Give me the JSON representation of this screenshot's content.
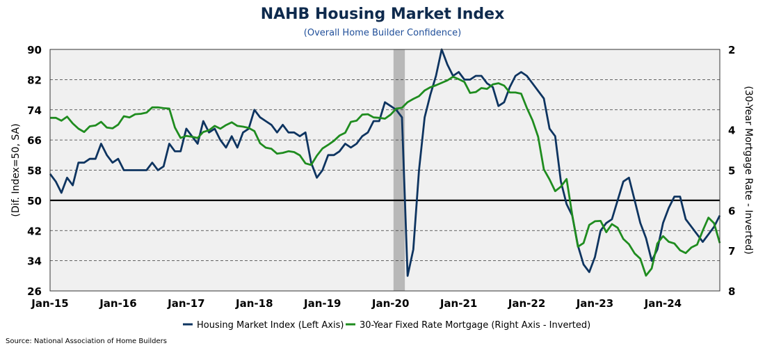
{
  "chart_data": {
    "type": "line",
    "title": "NAHB Housing Market Index",
    "subtitle": "(Overall Home Builder Confidence)",
    "ylabel_left": "(Dif. Index=50, SA)",
    "ylabel_right": "(30-Year Mortgage Rate - Inverted)",
    "ylim_left": [
      26,
      90
    ],
    "yticks_left": [
      26,
      34,
      42,
      50,
      58,
      66,
      74,
      82,
      90
    ],
    "ylim_right_inverted": [
      8,
      2
    ],
    "yticks_right": [
      2,
      4,
      5,
      6,
      7,
      8
    ],
    "xlim": [
      "2015-01",
      "2024-11"
    ],
    "xticks": [
      "Jan-15",
      "Jan-16",
      "Jan-17",
      "Jan-18",
      "Jan-19",
      "Jan-20",
      "Jan-21",
      "Jan-22",
      "Jan-23",
      "Jan-24"
    ],
    "reference_line": 50,
    "recession_shading": [
      "2020-02",
      "2020-04"
    ],
    "grid": "horizontal dashed",
    "legend_position": "bottom",
    "series": [
      {
        "name": "Housing Market Index (Left Axis)",
        "axis": "left",
        "color": "#0e3460",
        "x": [
          "2015-01",
          "2015-02",
          "2015-03",
          "2015-04",
          "2015-05",
          "2015-06",
          "2015-07",
          "2015-08",
          "2015-09",
          "2015-10",
          "2015-11",
          "2015-12",
          "2016-01",
          "2016-02",
          "2016-03",
          "2016-04",
          "2016-05",
          "2016-06",
          "2016-07",
          "2016-08",
          "2016-09",
          "2016-10",
          "2016-11",
          "2016-12",
          "2017-01",
          "2017-02",
          "2017-03",
          "2017-04",
          "2017-05",
          "2017-06",
          "2017-07",
          "2017-08",
          "2017-09",
          "2017-10",
          "2017-11",
          "2017-12",
          "2018-01",
          "2018-02",
          "2018-03",
          "2018-04",
          "2018-05",
          "2018-06",
          "2018-07",
          "2018-08",
          "2018-09",
          "2018-10",
          "2018-11",
          "2018-12",
          "2019-01",
          "2019-02",
          "2019-03",
          "2019-04",
          "2019-05",
          "2019-06",
          "2019-07",
          "2019-08",
          "2019-09",
          "2019-10",
          "2019-11",
          "2019-12",
          "2020-01",
          "2020-02",
          "2020-03",
          "2020-04",
          "2020-05",
          "2020-06",
          "2020-07",
          "2020-08",
          "2020-09",
          "2020-10",
          "2020-11",
          "2020-12",
          "2021-01",
          "2021-02",
          "2021-03",
          "2021-04",
          "2021-05",
          "2021-06",
          "2021-07",
          "2021-08",
          "2021-09",
          "2021-10",
          "2021-11",
          "2021-12",
          "2022-01",
          "2022-02",
          "2022-03",
          "2022-04",
          "2022-05",
          "2022-06",
          "2022-07",
          "2022-08",
          "2022-09",
          "2022-10",
          "2022-11",
          "2022-12",
          "2023-01",
          "2023-02",
          "2023-03",
          "2023-04",
          "2023-05",
          "2023-06",
          "2023-07",
          "2023-08",
          "2023-09",
          "2023-10",
          "2023-11",
          "2023-12",
          "2024-01",
          "2024-02",
          "2024-03",
          "2024-04",
          "2024-05",
          "2024-06",
          "2024-07",
          "2024-08",
          "2024-09",
          "2024-10",
          "2024-11"
        ],
        "values": [
          57,
          55,
          52,
          56,
          54,
          60,
          60,
          61,
          61,
          65,
          62,
          60,
          61,
          58,
          58,
          58,
          58,
          58,
          60,
          58,
          59,
          65,
          63,
          63,
          69,
          67,
          65,
          71,
          68,
          69,
          66,
          64,
          67,
          64,
          68,
          69,
          74,
          72,
          71,
          70,
          68,
          70,
          68,
          68,
          67,
          68,
          60,
          56,
          58,
          62,
          62,
          63,
          65,
          64,
          65,
          67,
          68,
          71,
          71,
          76,
          75,
          74,
          72,
          30,
          37,
          58,
          72,
          78,
          83,
          90,
          86,
          83,
          84,
          82,
          82,
          83,
          83,
          81,
          80,
          75,
          76,
          80,
          83,
          84,
          83,
          81,
          79,
          77,
          69,
          67,
          55,
          49,
          46,
          38,
          33,
          31,
          35,
          42,
          44,
          45,
          50,
          55,
          56,
          50,
          44,
          40,
          34,
          37,
          44,
          48,
          51,
          51,
          45,
          43,
          41,
          39,
          41,
          43,
          46
        ]
      },
      {
        "name": "30-Year Fixed Rate Mortgage (Right Axis - Inverted)",
        "axis": "right",
        "color": "#1f8c1f",
        "x": [
          "2015-01",
          "2015-02",
          "2015-03",
          "2015-04",
          "2015-05",
          "2015-06",
          "2015-07",
          "2015-08",
          "2015-09",
          "2015-10",
          "2015-11",
          "2015-12",
          "2016-01",
          "2016-02",
          "2016-03",
          "2016-04",
          "2016-05",
          "2016-06",
          "2016-07",
          "2016-08",
          "2016-09",
          "2016-10",
          "2016-11",
          "2016-12",
          "2017-01",
          "2017-02",
          "2017-03",
          "2017-04",
          "2017-05",
          "2017-06",
          "2017-07",
          "2017-08",
          "2017-09",
          "2017-10",
          "2017-11",
          "2017-12",
          "2018-01",
          "2018-02",
          "2018-03",
          "2018-04",
          "2018-05",
          "2018-06",
          "2018-07",
          "2018-08",
          "2018-09",
          "2018-10",
          "2018-11",
          "2018-12",
          "2019-01",
          "2019-02",
          "2019-03",
          "2019-04",
          "2019-05",
          "2019-06",
          "2019-07",
          "2019-08",
          "2019-09",
          "2019-10",
          "2019-11",
          "2019-12",
          "2020-01",
          "2020-02",
          "2020-03",
          "2020-04",
          "2020-05",
          "2020-06",
          "2020-07",
          "2020-08",
          "2020-09",
          "2020-10",
          "2020-11",
          "2020-12",
          "2021-01",
          "2021-02",
          "2021-03",
          "2021-04",
          "2021-05",
          "2021-06",
          "2021-07",
          "2021-08",
          "2021-09",
          "2021-10",
          "2021-11",
          "2021-12",
          "2022-01",
          "2022-02",
          "2022-03",
          "2022-04",
          "2022-05",
          "2022-06",
          "2022-07",
          "2022-08",
          "2022-09",
          "2022-10",
          "2022-11",
          "2022-12",
          "2023-01",
          "2023-02",
          "2023-03",
          "2023-04",
          "2023-05",
          "2023-06",
          "2023-07",
          "2023-08",
          "2023-09",
          "2023-10",
          "2023-11",
          "2023-12",
          "2024-01",
          "2024-02",
          "2024-03",
          "2024-04",
          "2024-05",
          "2024-06",
          "2024-07",
          "2024-08",
          "2024-09",
          "2024-10",
          "2024-11"
        ],
        "values": [
          3.7,
          3.7,
          3.77,
          3.67,
          3.84,
          3.97,
          4.05,
          3.91,
          3.89,
          3.8,
          3.94,
          3.96,
          3.87,
          3.66,
          3.69,
          3.61,
          3.6,
          3.57,
          3.44,
          3.44,
          3.46,
          3.47,
          3.94,
          4.2,
          4.15,
          4.17,
          4.2,
          4.05,
          4.01,
          3.9,
          3.97,
          3.88,
          3.81,
          3.9,
          3.92,
          3.95,
          4.03,
          4.33,
          4.44,
          4.47,
          4.59,
          4.57,
          4.53,
          4.55,
          4.63,
          4.83,
          4.87,
          4.64,
          4.46,
          4.37,
          4.27,
          4.14,
          4.07,
          3.8,
          3.77,
          3.62,
          3.61,
          3.69,
          3.7,
          3.72,
          3.62,
          3.47,
          3.45,
          3.31,
          3.23,
          3.16,
          3.02,
          2.94,
          2.89,
          2.83,
          2.77,
          2.68,
          2.74,
          2.81,
          3.08,
          3.06,
          2.96,
          2.98,
          2.87,
          2.84,
          2.9,
          3.07,
          3.07,
          3.1,
          3.45,
          3.76,
          4.17,
          4.98,
          5.23,
          5.52,
          5.41,
          5.22,
          6.11,
          6.9,
          6.81,
          6.36,
          6.27,
          6.26,
          6.54,
          6.34,
          6.43,
          6.71,
          6.84,
          7.07,
          7.2,
          7.62,
          7.44,
          6.82,
          6.64,
          6.78,
          6.82,
          6.99,
          7.06,
          6.92,
          6.85,
          6.5,
          6.18,
          6.32,
          6.81
        ]
      }
    ]
  },
  "legend": {
    "items": [
      {
        "label": "Housing Market Index (Left Axis)",
        "color": "#0e3460"
      },
      {
        "label": "30-Year Fixed Rate Mortgage (Right Axis - Inverted)",
        "color": "#1f8c1f"
      }
    ]
  },
  "source": "Source: National Association of Home Builders",
  "colors": {
    "plot_background": "#f0f0f0",
    "recession_bar": "#b8b8b8",
    "grid": "#333333",
    "title": "#0e2a4d",
    "subtitle": "#1f4e99"
  }
}
